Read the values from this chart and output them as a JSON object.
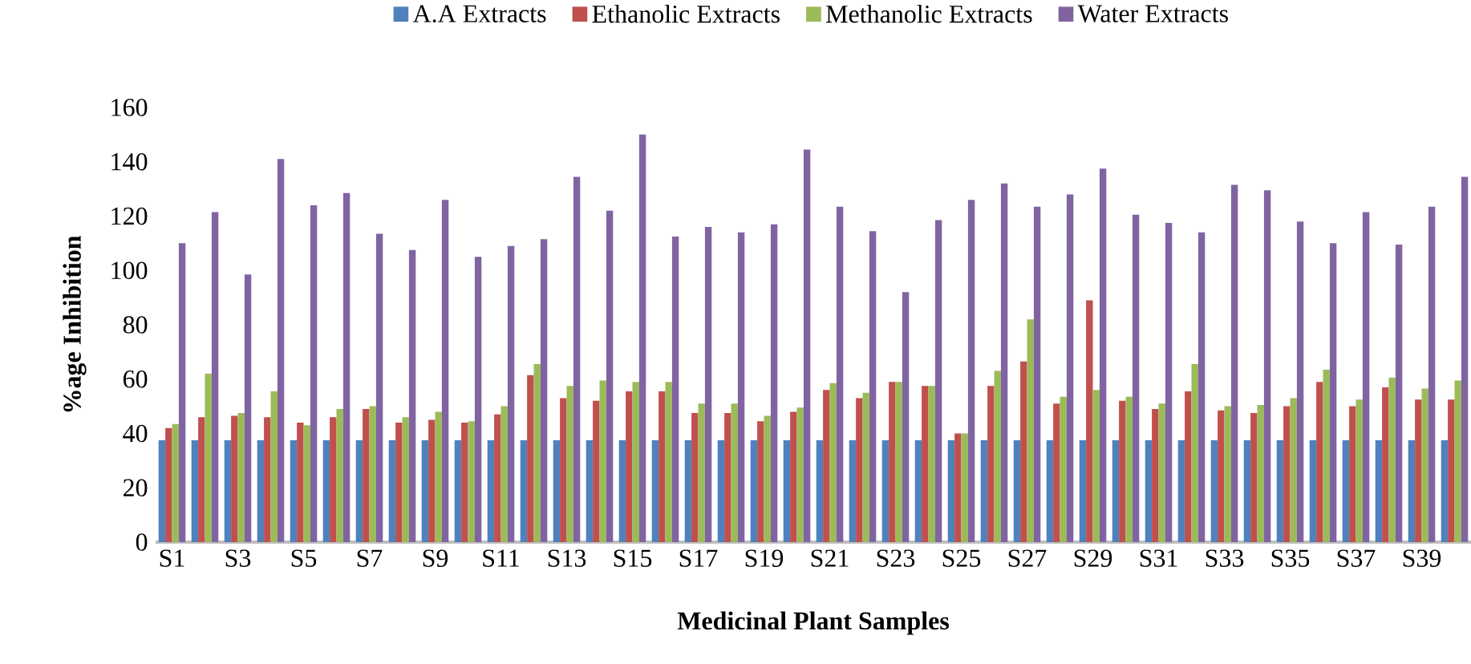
{
  "chart_data": {
    "type": "bar",
    "xlabel": "Medicinal Plant Samples",
    "ylabel": "%age Inhibition",
    "categories": [
      "S1",
      null,
      "S3",
      null,
      "S5",
      null,
      "S7",
      null,
      "S9",
      null,
      "S11",
      null,
      "S13",
      null,
      "S15",
      null,
      "S17",
      null,
      "S19",
      null,
      "S21",
      null,
      "S23",
      null,
      "S25",
      null,
      "S27",
      null,
      "S29",
      null,
      "S31",
      null,
      "S33",
      null,
      "S35",
      null,
      "S37",
      null,
      "S39",
      null
    ],
    "series": [
      {
        "name": "A.A Extracts",
        "color": "#4f81bd",
        "values": [
          37.5,
          37.5,
          37.5,
          37.5,
          37.5,
          37.5,
          37.5,
          37.5,
          37.5,
          37.5,
          37.5,
          37.5,
          37.5,
          37.5,
          37.5,
          37.5,
          37.5,
          37.5,
          37.5,
          37.5,
          37.5,
          37.5,
          37.5,
          37.5,
          37.5,
          37.5,
          37.5,
          37.5,
          37.5,
          37.5,
          37.5,
          37.5,
          37.5,
          37.5,
          37.5,
          37.5,
          37.5,
          37.5,
          37.5,
          37.5
        ]
      },
      {
        "name": "Ethanolic Extracts",
        "color": "#c0504d",
        "values": [
          42,
          46,
          46.5,
          46,
          44,
          46,
          49,
          44,
          45,
          44,
          47,
          61.5,
          53,
          52,
          55.5,
          55.5,
          47.5,
          47.5,
          44.5,
          48,
          56,
          53,
          59,
          57.5,
          40,
          57.5,
          66.5,
          51,
          89,
          52,
          49,
          55.5,
          48.5,
          47.5,
          50,
          59,
          50,
          57,
          52.5,
          52.5
        ]
      },
      {
        "name": "Methanolic Extracts",
        "color": "#9bbb59",
        "values": [
          43.5,
          62,
          47.5,
          55.5,
          43,
          49,
          50,
          46,
          48,
          44.5,
          50,
          65.5,
          57.5,
          59.5,
          59,
          59,
          51,
          51,
          46.5,
          49.5,
          58.5,
          55,
          59,
          57.5,
          40,
          63,
          82,
          53.5,
          56,
          53.5,
          51,
          65.5,
          50,
          50.5,
          53,
          63.5,
          52.5,
          60.5,
          56.5,
          59.5
        ]
      },
      {
        "name": "Water Extracts",
        "color": "#8064a2",
        "values": [
          110,
          121.5,
          98.5,
          141,
          124,
          128.5,
          113.5,
          107.5,
          126,
          105,
          109,
          111.5,
          134.5,
          122,
          150,
          112.5,
          116,
          114,
          117,
          144.5,
          123.5,
          114.5,
          92,
          118.5,
          126,
          132,
          123.5,
          128,
          137.5,
          120.5,
          117.5,
          114,
          131.5,
          129.5,
          118,
          110,
          121.5,
          109.5,
          123.5,
          134.5
        ]
      }
    ],
    "ylim": [
      0,
      160
    ],
    "yticks": [
      0,
      20,
      40,
      60,
      80,
      100,
      120,
      140,
      160
    ],
    "legend": "top"
  }
}
